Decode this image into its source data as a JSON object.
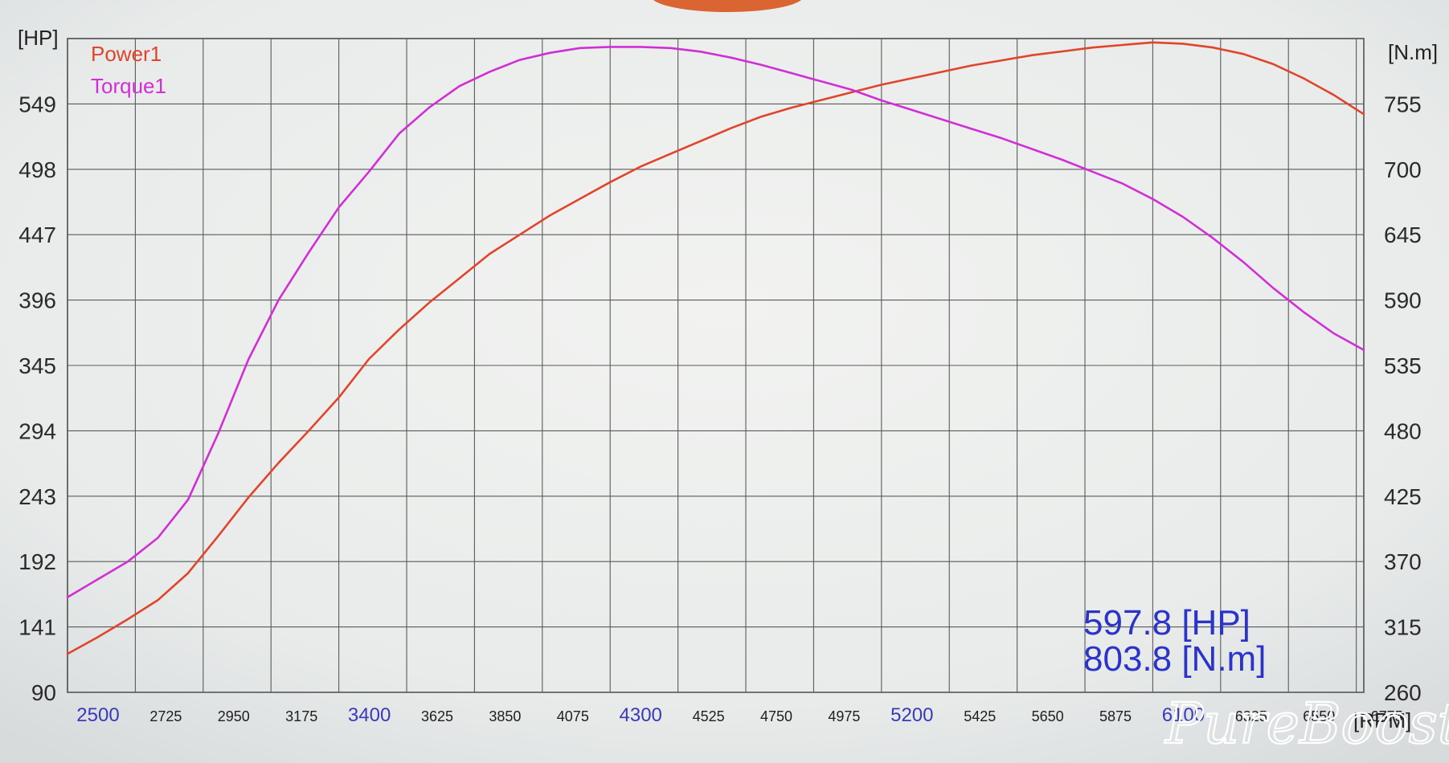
{
  "chart_data": {
    "type": "line",
    "x": [
      2500,
      2725,
      2950,
      3175,
      3400,
      3625,
      3850,
      4075,
      4300,
      4525,
      4750,
      4975,
      5200,
      5425,
      5650,
      5875,
      6100,
      6325,
      6550,
      6775
    ],
    "x_tick_labels": [
      "2500",
      "2725",
      "2950",
      "3175",
      "3400",
      "3625",
      "3850",
      "4075",
      "4300",
      "4525",
      "4750",
      "4975",
      "5200",
      "5425",
      "5650",
      "5875",
      "6100",
      "6325",
      "6550",
      "6775"
    ],
    "x_major_ticks": [
      "2500",
      "3400",
      "4300",
      "5200",
      "6100"
    ],
    "xlim": [
      2500,
      6800
    ],
    "xlabel": "[RPM]",
    "y_left": {
      "label": "[HP]",
      "ticks": [
        90,
        141,
        192,
        243,
        294,
        345,
        396,
        447,
        498,
        549
      ],
      "ylim": [
        90,
        600
      ]
    },
    "y_right": {
      "label": "[N.m]",
      "ticks": [
        260,
        315,
        370,
        425,
        480,
        535,
        590,
        645,
        700,
        755
      ],
      "ylim": [
        260,
        810
      ]
    },
    "series": [
      {
        "name": "Power1",
        "axis": "left",
        "color": "#e0452c",
        "x": [
          2500,
          2600,
          2700,
          2800,
          2900,
          3000,
          3100,
          3200,
          3300,
          3400,
          3500,
          3600,
          3700,
          3800,
          3900,
          4000,
          4100,
          4200,
          4300,
          4400,
          4500,
          4600,
          4700,
          4800,
          4900,
          5000,
          5100,
          5200,
          5300,
          5400,
          5500,
          5600,
          5700,
          5800,
          5900,
          6000,
          6100,
          6200,
          6300,
          6400,
          6500,
          6600,
          6700,
          6800
        ],
        "values": [
          120,
          133,
          147,
          162,
          183,
          212,
          242,
          269,
          294,
          320,
          350,
          373,
          394,
          413,
          432,
          447,
          462,
          475,
          488,
          500,
          510,
          520,
          530,
          539,
          546,
          552,
          558,
          564,
          569,
          574,
          579,
          583,
          587,
          590,
          593,
          595,
          597,
          596,
          593,
          588,
          580,
          569,
          556,
          541
        ]
      },
      {
        "name": "Torque1",
        "axis": "right",
        "color": "#d12fd6",
        "x": [
          2500,
          2600,
          2700,
          2800,
          2900,
          3000,
          3100,
          3200,
          3300,
          3400,
          3500,
          3600,
          3700,
          3800,
          3900,
          4000,
          4100,
          4200,
          4300,
          4400,
          4500,
          4600,
          4700,
          4800,
          4900,
          5000,
          5100,
          5200,
          5300,
          5400,
          5500,
          5600,
          5700,
          5800,
          5900,
          6000,
          6100,
          6200,
          6300,
          6400,
          6500,
          6600,
          6700,
          6800
        ],
        "values": [
          340,
          355,
          370,
          390,
          422,
          478,
          540,
          590,
          630,
          668,
          698,
          730,
          752,
          770,
          782,
          792,
          798,
          802,
          803,
          803,
          802,
          799,
          794,
          788,
          781,
          774,
          767,
          758,
          750,
          742,
          734,
          726,
          717,
          708,
          698,
          688,
          675,
          660,
          642,
          622,
          600,
          580,
          562,
          548
        ]
      }
    ],
    "readouts": {
      "power": "597.8  [HP]",
      "torque": "803.8  [N.m]"
    }
  },
  "watermark": "PureBoost"
}
